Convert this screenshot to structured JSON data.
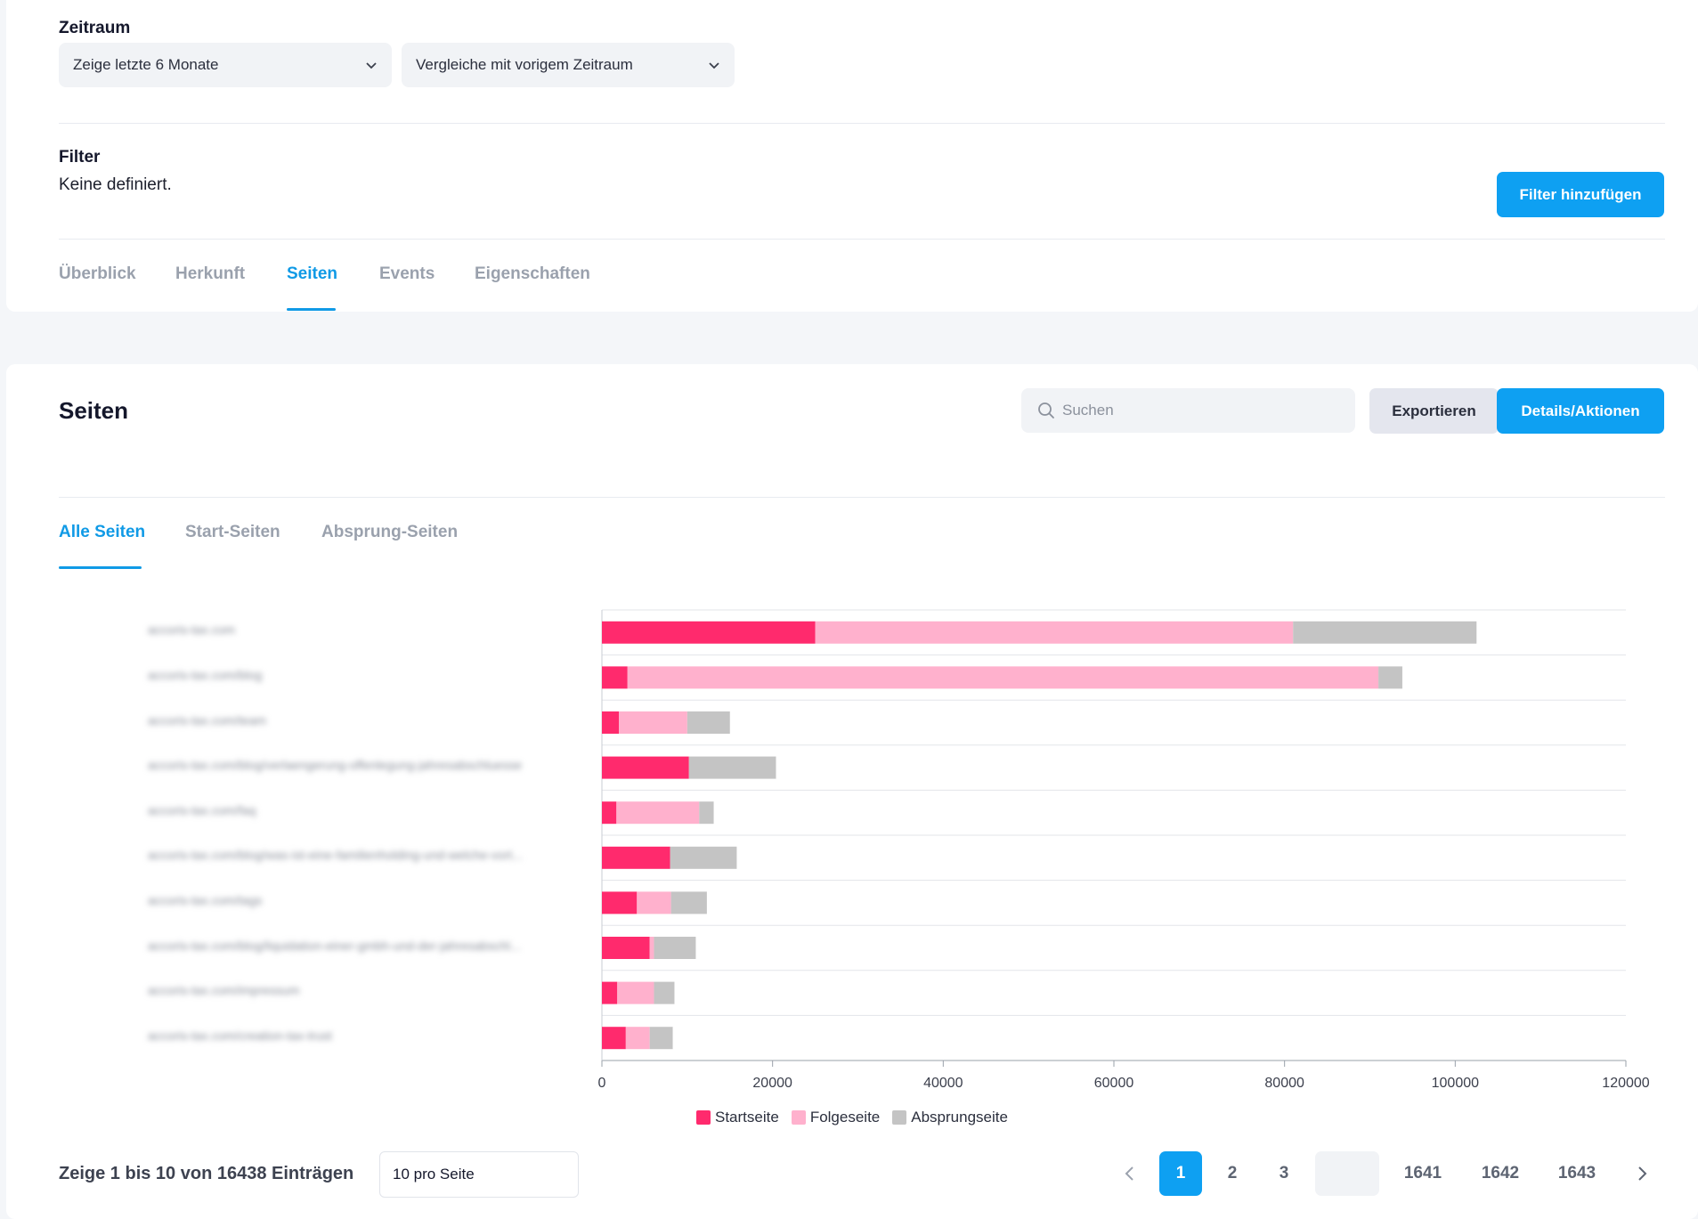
{
  "zeitraum": {
    "label": "Zeitraum",
    "period_select": "Zeige letzte 6 Monate",
    "compare_select": "Vergleiche mit vorigem Zeitraum"
  },
  "filter": {
    "label": "Filter",
    "value": "Keine definiert.",
    "add_button": "Filter hinzufügen"
  },
  "top_tabs": [
    "Überblick",
    "Herkunft",
    "Seiten",
    "Events",
    "Eigenschaften"
  ],
  "top_tabs_active": "Seiten",
  "section": {
    "title": "Seiten",
    "search_placeholder": "Suchen",
    "export_button": "Exportieren",
    "details_button": "Details/Aktionen"
  },
  "sub_tabs": [
    "Alle Seiten",
    "Start-Seiten",
    "Absprung-Seiten"
  ],
  "sub_tabs_active": "Alle Seiten",
  "chart_data": {
    "type": "bar",
    "orientation": "horizontal",
    "stacked": true,
    "categories": [
      "accoris-tax.com",
      "accoris-tax.com/blog",
      "accoris-tax.com/team",
      "accoris-tax.com/blog/verlaengerung-offenlegung-jahresabschluesse",
      "accoris-tax.com/faq",
      "accoris-tax.com/blog/was-ist-eine-familienholding-und-welche-vort...",
      "accoris-tax.com/tags",
      "accoris-tax.com/blog/liquidation-einer-gmbh-und-der-jahresabschl...",
      "accoris-tax.com/impressum",
      "accoris-tax.com/creation-tax-trust"
    ],
    "series": [
      {
        "name": "Startseite",
        "color": "#ff2a6d",
        "values": [
          25000,
          3000,
          2000,
          10200,
          1700,
          8000,
          4100,
          5600,
          1800,
          2800
        ]
      },
      {
        "name": "Folgeseite",
        "color": "#ffb1cd",
        "values": [
          56000,
          88000,
          8000,
          0,
          9700,
          0,
          4000,
          500,
          4300,
          2800
        ]
      },
      {
        "name": "Absprungseite",
        "color": "#c4c4c4",
        "values": [
          21500,
          2800,
          5000,
          10200,
          1700,
          7800,
          4200,
          4900,
          2400,
          2700
        ]
      }
    ],
    "xlim": [
      0,
      120000
    ],
    "xticks": [
      "0",
      "20000",
      "40000",
      "60000",
      "80000",
      "100000",
      "120000"
    ],
    "grid": true,
    "legend_position": "bottom"
  },
  "pagination": {
    "summary": "Zeige 1 bis 10 von 16438 Einträgen",
    "per_page": "10 pro Seite",
    "prev_icon": "chevron-left-icon",
    "next_icon": "chevron-right-icon",
    "pages": [
      "1",
      "2",
      "3",
      "",
      "1641",
      "1642",
      "1643"
    ],
    "active_page": "1"
  },
  "colors": {
    "accent": "#0ea0f2",
    "tab_active": "#109ae6"
  }
}
